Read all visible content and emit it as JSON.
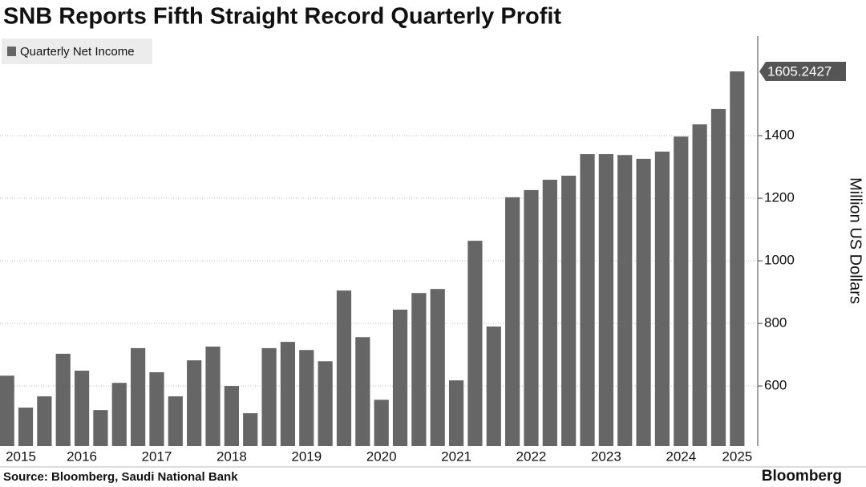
{
  "chart_data": {
    "type": "bar",
    "title": "SNB Reports Fifth Straight Record Quarterly Profit",
    "source": "Source: Bloomberg, Saudi National Bank",
    "brand": "Bloomberg",
    "y_axis_label": "Million US Dollars",
    "categories": [
      "2015",
      null,
      null,
      null,
      "2016",
      null,
      null,
      null,
      "2017",
      null,
      null,
      null,
      "2018",
      null,
      null,
      null,
      "2019",
      null,
      null,
      null,
      "2020",
      null,
      null,
      null,
      "2021",
      null,
      null,
      null,
      "2022",
      null,
      null,
      null,
      "2023",
      null,
      null,
      null,
      "2024",
      null,
      null,
      "2025"
    ],
    "series": [
      {
        "name": "Quarterly Net Income",
        "color": "#666666",
        "values": [
          633,
          531,
          567,
          703,
          649,
          523,
          610,
          721,
          644,
          567,
          682,
          726,
          600,
          513,
          721,
          741,
          715,
          679,
          905,
          756,
          556,
          844,
          897,
          910,
          618,
          1064,
          790,
          1203,
          1226,
          1259,
          1272,
          1341,
          1341,
          1338,
          1326,
          1349,
          1397,
          1436,
          1485,
          1605.2427
        ]
      }
    ],
    "ylim": [
      408,
      1718
    ],
    "yticks": [
      600,
      800,
      1000,
      1200,
      1400
    ],
    "grid": true,
    "legend": "top-left",
    "y_axis_side": "right"
  }
}
